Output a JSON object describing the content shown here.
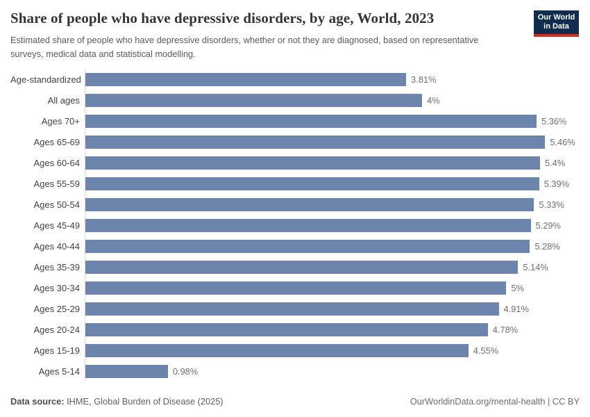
{
  "header": {
    "title": "Share of people who have depressive disorders, by age, World, 2023",
    "subtitle": "Estimated share of people who have depressive disorders, whether or not they are diagnosed, based on representative surveys, medical data and statistical modelling.",
    "logo": {
      "line1": "Our World",
      "line2": "in Data",
      "bg_color": "#102d50",
      "accent_color": "#dc2a19"
    }
  },
  "chart_data": {
    "type": "bar",
    "orientation": "horizontal",
    "title": "Share of people who have depressive disorders, by age, World, 2023",
    "xlabel": "",
    "ylabel": "",
    "xlim": [
      0,
      5.87
    ],
    "grid": false,
    "legend": "none",
    "bar_color": "#6d85ad",
    "categories": [
      "Age-standardized",
      "All ages",
      "Ages 70+",
      "Ages 65-69",
      "Ages 60-64",
      "Ages 55-59",
      "Ages 50-54",
      "Ages 45-49",
      "Ages 40-44",
      "Ages 35-39",
      "Ages 30-34",
      "Ages 25-29",
      "Ages 20-24",
      "Ages 15-19",
      "Ages 5-14"
    ],
    "values": [
      3.81,
      4,
      5.36,
      5.46,
      5.4,
      5.39,
      5.33,
      5.29,
      5.28,
      5.14,
      5,
      4.91,
      4.78,
      4.55,
      0.98
    ],
    "value_labels": [
      "3.81%",
      "4%",
      "5.36%",
      "5.46%",
      "5.4%",
      "5.39%",
      "5.33%",
      "5.29%",
      "5.28%",
      "5.14%",
      "5%",
      "4.91%",
      "4.78%",
      "4.55%",
      "0.98%"
    ]
  },
  "footer": {
    "source_label": "Data source:",
    "source_text": "IHME, Global Burden of Disease (2025)",
    "credit": "OurWorldinData.org/mental-health | CC BY"
  }
}
